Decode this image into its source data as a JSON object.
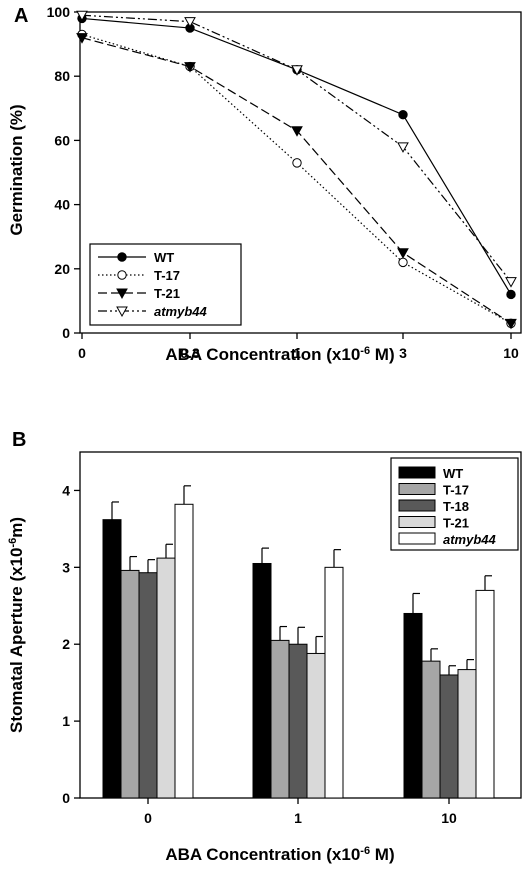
{
  "chart_data": [
    {
      "panel": "A",
      "type": "line",
      "xlabel": "ABA Concentration (x10",
      "xlabel_sup": "-6",
      "xlabel_suffix": " M)",
      "ylabel": "Germination (%)",
      "categories": [
        "0",
        "0.3",
        "1",
        "3",
        "10"
      ],
      "ylim": [
        0,
        100
      ],
      "yticks": [
        "0",
        "20",
        "40",
        "60",
        "80",
        "100"
      ],
      "legend_position": "bottom-left",
      "series": [
        {
          "name": "WT",
          "values": [
            98,
            95,
            82,
            68,
            12
          ],
          "marker": "filled-circle",
          "dash": ""
        },
        {
          "name": "T-17",
          "values": [
            93,
            83,
            53,
            22,
            3
          ],
          "marker": "open-circle",
          "dash": "1.5,2.5"
        },
        {
          "name": "T-21",
          "values": [
            92,
            83,
            63,
            25,
            3
          ],
          "marker": "filled-triangle-down",
          "dash": "9,4"
        },
        {
          "name": "atmyb44",
          "values": [
            99,
            97,
            82,
            58,
            16
          ],
          "marker": "open-triangle-down",
          "dash": "9,3,2,3,2,3"
        }
      ]
    },
    {
      "panel": "B",
      "type": "bar",
      "xlabel": "ABA Concentration (x10",
      "xlabel_sup": "-6",
      "xlabel_suffix": " M)",
      "ylabel": "Stomatal Aperture (x10",
      "ylabel_sup": "-6",
      "ylabel_suffix": "m)",
      "categories": [
        "0",
        "1",
        "10"
      ],
      "ylim": [
        0,
        4.5
      ],
      "yticks": [
        "0",
        "1",
        "2",
        "3",
        "4"
      ],
      "legend_position": "top-right",
      "series": [
        {
          "name": "WT",
          "values": [
            3.62,
            3.05,
            2.4
          ],
          "errors": [
            0.23,
            0.2,
            0.26
          ],
          "color": "#000000"
        },
        {
          "name": "T-17",
          "values": [
            2.96,
            2.05,
            1.78
          ],
          "errors": [
            0.18,
            0.18,
            0.16
          ],
          "color": "#a6a6a6"
        },
        {
          "name": "T-18",
          "values": [
            2.93,
            2.0,
            1.6
          ],
          "errors": [
            0.17,
            0.22,
            0.12
          ],
          "color": "#595959"
        },
        {
          "name": "T-21",
          "values": [
            3.12,
            1.88,
            1.67
          ],
          "errors": [
            0.18,
            0.22,
            0.13
          ],
          "color": "#d9d9d9"
        },
        {
          "name": "atmyb44",
          "values": [
            3.82,
            3.0,
            2.7
          ],
          "errors": [
            0.24,
            0.23,
            0.19
          ],
          "color": "#ffffff"
        }
      ]
    }
  ]
}
